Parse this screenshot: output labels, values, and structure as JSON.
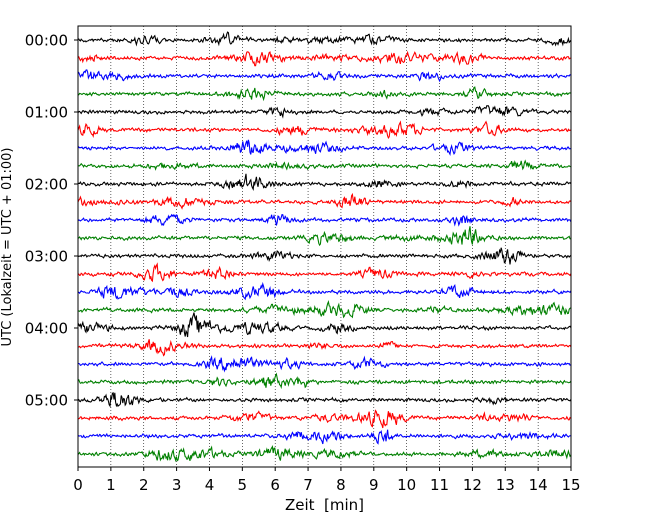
{
  "chart_data": {
    "type": "line",
    "subtype": "helicorder",
    "title": "",
    "xlabel": "Zeit  [min]",
    "ylabel": "UTC (Lokalzeit = UTC + 01:00)",
    "xlim": [
      0,
      15
    ],
    "x_ticks": [
      "0",
      "1",
      "2",
      "3",
      "4",
      "5",
      "6",
      "7",
      "8",
      "9",
      "10",
      "11",
      "12",
      "13",
      "14",
      "15"
    ],
    "y_tick_labels": [
      "00:00",
      "01:00",
      "02:00",
      "03:00",
      "04:00",
      "05:00"
    ],
    "trace_interval_minutes": 15,
    "trace_count": 24,
    "grid": "vertical dotted",
    "trace_colors": [
      "#000000",
      "#ff0000",
      "#0000ff",
      "#008000"
    ]
  }
}
